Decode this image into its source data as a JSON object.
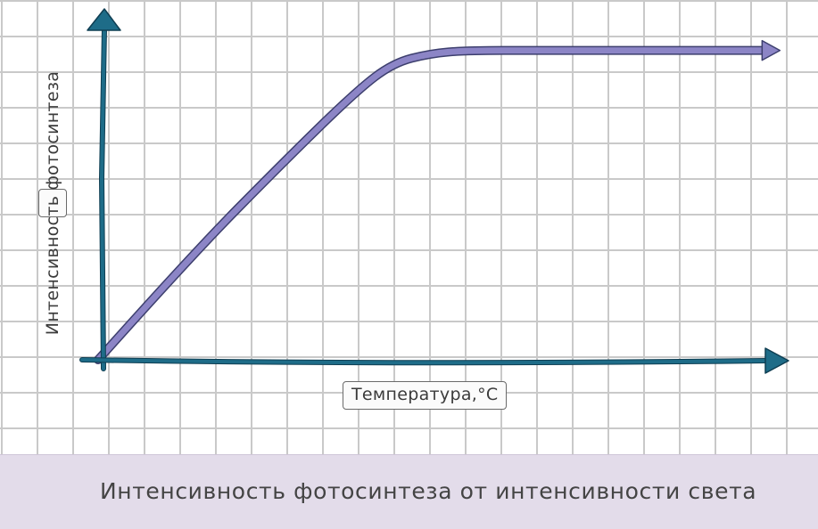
{
  "chart_data": {
    "type": "line",
    "title": "Интенсивность фотосинтеза от интенсивности света",
    "xlabel": "Температура,°С",
    "ylabel": "Интенсивность фотосинтеза",
    "grid": true,
    "series": [
      {
        "color": "#8c85c6",
        "x": [
          0,
          2.5,
          5,
          7,
          8,
          9,
          10,
          12,
          18
        ],
        "y": [
          0,
          3.3,
          6.3,
          8.6,
          9.5,
          9.8,
          9.9,
          9.9,
          9.9
        ]
      }
    ],
    "xlim": [
      0,
      18.5
    ],
    "ylim": [
      0,
      11
    ]
  },
  "colors": {
    "axis": "#1e6c88",
    "grid": "#c9c9c9",
    "caption_bg": "#e3dcea"
  }
}
